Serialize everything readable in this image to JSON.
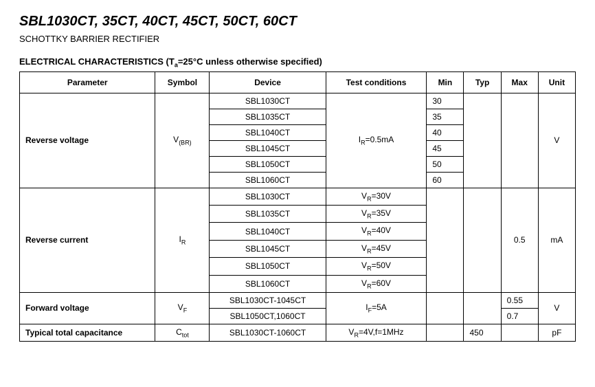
{
  "header": {
    "title": "SBL1030CT, 35CT, 40CT, 45CT, 50CT, 60CT",
    "subtitle": "SCHOTTKY BARRIER RECTIFIER",
    "section_label": "ELECTRICAL CHARACTERISTICS (",
    "section_cond_pre": "T",
    "section_cond_sub": "a",
    "section_cond_post": "=25°C unless otherwise specified)"
  },
  "table": {
    "headers": {
      "parameter": "Parameter",
      "symbol": "Symbol",
      "device": "Device",
      "conditions": "Test conditions",
      "min": "Min",
      "typ": "Typ",
      "max": "Max",
      "unit": "Unit"
    },
    "rev_voltage": {
      "param": "Reverse voltage",
      "sym_main": "V",
      "sym_sub": "(BR)",
      "cond_pre": "I",
      "cond_sub": "R",
      "cond_post": "=0.5mA",
      "unit": "V",
      "rows": [
        {
          "device": "SBL1030CT",
          "min": "30"
        },
        {
          "device": "SBL1035CT",
          "min": "35"
        },
        {
          "device": "SBL1040CT",
          "min": "40"
        },
        {
          "device": "SBL1045CT",
          "min": "45"
        },
        {
          "device": "SBL1050CT",
          "min": "50"
        },
        {
          "device": "SBL1060CT",
          "min": "60"
        }
      ]
    },
    "rev_current": {
      "param": "Reverse current",
      "sym_main": "I",
      "sym_sub": "R",
      "max": "0.5",
      "unit": "mA",
      "rows": [
        {
          "device": "SBL1030CT",
          "cond_pre": "V",
          "cond_sub": "R",
          "cond_post": "=30V"
        },
        {
          "device": "SBL1035CT",
          "cond_pre": "V",
          "cond_sub": "R",
          "cond_post": "=35V"
        },
        {
          "device": "SBL1040CT",
          "cond_pre": "V",
          "cond_sub": "R",
          "cond_post": "=40V"
        },
        {
          "device": "SBL1045CT",
          "cond_pre": "V",
          "cond_sub": "R",
          "cond_post": "=45V"
        },
        {
          "device": "SBL1050CT",
          "cond_pre": "V",
          "cond_sub": "R",
          "cond_post": "=50V"
        },
        {
          "device": "SBL1060CT",
          "cond_pre": "V",
          "cond_sub": "R",
          "cond_post": "=60V"
        }
      ]
    },
    "fwd_voltage": {
      "param": "Forward voltage",
      "sym_main": "V",
      "sym_sub": "F",
      "cond_pre": "I",
      "cond_sub": "F",
      "cond_post": "=5A",
      "unit": "V",
      "rows": [
        {
          "device": "SBL1030CT-1045CT",
          "max": "0.55"
        },
        {
          "device": "SBL1050CT,1060CT",
          "max": "0.7"
        }
      ]
    },
    "capacitance": {
      "param": "Typical total capacitance",
      "sym_main": "C",
      "sym_sub": "tot",
      "device": "SBL1030CT-1060CT",
      "cond_pre": "V",
      "cond_sub": "R",
      "cond_post": "=4V,f=1MHz",
      "typ": "450",
      "unit": "pF"
    }
  }
}
